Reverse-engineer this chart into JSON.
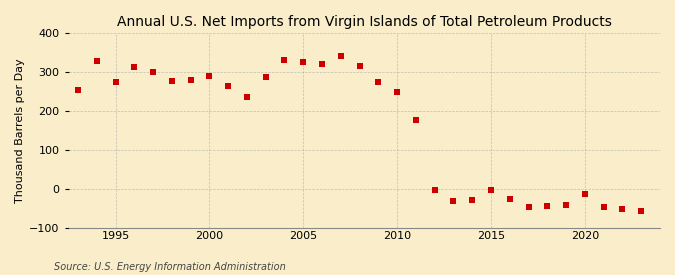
{
  "title": "Annual U.S. Net Imports from Virgin Islands of Total Petroleum Products",
  "ylabel": "Thousand Barrels per Day",
  "source": "Source: U.S. Energy Information Administration",
  "years": [
    1993,
    1994,
    1995,
    1996,
    1997,
    1998,
    1999,
    2000,
    2001,
    2002,
    2003,
    2004,
    2005,
    2006,
    2007,
    2008,
    2009,
    2010,
    2011,
    2012,
    2013,
    2014,
    2015,
    2016,
    2017,
    2018,
    2019,
    2020,
    2021,
    2022,
    2023
  ],
  "values": [
    253,
    328,
    275,
    312,
    300,
    278,
    280,
    290,
    265,
    235,
    287,
    330,
    325,
    320,
    340,
    315,
    275,
    248,
    178,
    -3,
    -30,
    -28,
    -2,
    -27,
    -47,
    -43,
    -42,
    -12,
    -47,
    -52,
    -57
  ],
  "marker_color": "#cc0000",
  "marker_size": 18,
  "bg_color": "#faeeca",
  "grid_color": "#aaaaaa",
  "ylim": [
    -100,
    400
  ],
  "yticks": [
    -100,
    0,
    100,
    200,
    300,
    400
  ],
  "xlim": [
    1992.5,
    2024
  ],
  "xticks": [
    1995,
    2000,
    2005,
    2010,
    2015,
    2020
  ],
  "title_fontsize": 10,
  "label_fontsize": 8,
  "source_fontsize": 7
}
